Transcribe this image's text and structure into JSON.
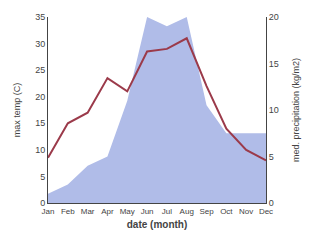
{
  "chart_data": {
    "type": "line",
    "xlabel": "date (month)",
    "ylabel": "max temp (C)",
    "y2label": "med. precipitation (kg/m2)",
    "categories": [
      "Jan",
      "Feb",
      "Mar",
      "Apr",
      "May",
      "Jun",
      "Jul",
      "Aug",
      "Sep",
      "Oct",
      "Nov",
      "Dec"
    ],
    "series": [
      {
        "type": "area",
        "axis": "y2",
        "color": "#b0bce8",
        "values": [
          1.0,
          2.0,
          4.0,
          5.0,
          11.0,
          20.0,
          19.0,
          20.0,
          10.5,
          7.5,
          7.5,
          7.5
        ]
      },
      {
        "type": "line",
        "color": "#9b3a4a",
        "values": [
          8.5,
          15.0,
          17.0,
          23.5,
          21.0,
          28.5,
          29.0,
          31.0,
          22.0,
          14.0,
          10.0,
          8.0
        ]
      }
    ],
    "ylim": [
      0,
      35
    ],
    "yticks": [
      0,
      5,
      10,
      15,
      20,
      25,
      30,
      35
    ],
    "y2lim": [
      0,
      20
    ],
    "y2ticks": [
      0,
      5,
      10,
      15,
      20
    ],
    "grid": false
  }
}
